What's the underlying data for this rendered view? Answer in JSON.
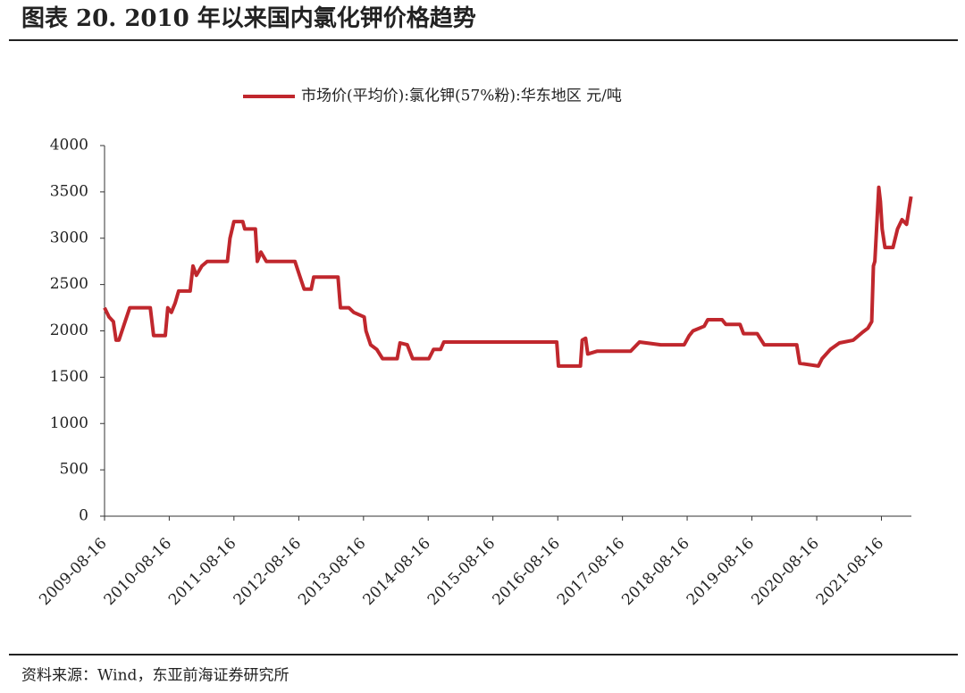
{
  "chart_data": {
    "type": "line",
    "title": "图表 20. 2010 年以来国内氯化钾价格趋势",
    "source": "资料来源：Wind，东亚前海证券研究所",
    "x": [
      "2009-08-16",
      "2009-09-10",
      "2009-10-05",
      "2009-10-20",
      "2009-11-05",
      "2009-12-10",
      "2010-01-05",
      "2010-05-01",
      "2010-05-20",
      "2010-07-25",
      "2010-08-08",
      "2010-08-28",
      "2010-09-18",
      "2010-10-08",
      "2010-12-12",
      "2010-12-28",
      "2011-01-16",
      "2011-02-16",
      "2011-03-18",
      "2011-07-10",
      "2011-07-25",
      "2011-08-16",
      "2011-10-05",
      "2011-10-16",
      "2011-12-15",
      "2011-12-26",
      "2012-01-15",
      "2012-02-15",
      "2012-07-25",
      "2012-08-20",
      "2012-09-15",
      "2012-10-25",
      "2012-11-08",
      "2013-03-25",
      "2013-04-08",
      "2013-05-25",
      "2013-06-22",
      "2013-08-20",
      "2013-08-30",
      "2013-09-25",
      "2013-10-30",
      "2013-12-01",
      "2014-02-22",
      "2014-03-10",
      "2014-04-20",
      "2014-05-20",
      "2014-08-20",
      "2014-09-15",
      "2014-10-25",
      "2014-11-12",
      "2016-08-10",
      "2016-08-20",
      "2016-12-22",
      "2017-01-01",
      "2017-01-20",
      "2017-02-01",
      "2017-03-25",
      "2017-10-01",
      "2017-11-20",
      "2018-03-20",
      "2018-07-30",
      "2018-08-28",
      "2018-09-18",
      "2018-11-20",
      "2018-12-10",
      "2019-03-01",
      "2019-03-22",
      "2019-06-10",
      "2019-06-30",
      "2019-09-15",
      "2019-10-25",
      "2020-04-25",
      "2020-05-12",
      "2020-08-25",
      "2020-09-15",
      "2020-11-01",
      "2020-12-22",
      "2021-03-10",
      "2021-04-28",
      "2021-06-01",
      "2021-06-22",
      "2021-07-02",
      "2021-07-10",
      "2021-08-01",
      "2021-08-10",
      "2021-08-20",
      "2021-09-05",
      "2021-10-20",
      "2021-11-15",
      "2021-12-10",
      "2022-01-05",
      "2022-01-30"
    ],
    "series": [
      {
        "name": "市场价(平均价):氯化钾(57%粉):华东地区 元/吨",
        "color": "#c0272d",
        "values": [
          2250,
          2150,
          2100,
          1900,
          1900,
          2100,
          2250,
          2250,
          1950,
          1950,
          2250,
          2200,
          2300,
          2430,
          2430,
          2700,
          2600,
          2700,
          2750,
          2750,
          3000,
          3180,
          3180,
          3100,
          3100,
          2750,
          2850,
          2750,
          2750,
          2600,
          2450,
          2450,
          2580,
          2580,
          2250,
          2250,
          2200,
          2150,
          2000,
          1850,
          1800,
          1700,
          1700,
          1870,
          1850,
          1700,
          1700,
          1800,
          1800,
          1880,
          1880,
          1620,
          1620,
          1900,
          1920,
          1750,
          1780,
          1780,
          1880,
          1850,
          1850,
          1950,
          2000,
          2050,
          2120,
          2120,
          2070,
          2070,
          1970,
          1970,
          1850,
          1850,
          1650,
          1620,
          1700,
          1800,
          1870,
          1900,
          1980,
          2030,
          2100,
          2700,
          2750,
          3550,
          3400,
          3100,
          2900,
          2900,
          3100,
          3200,
          3150,
          3450
        ]
      }
    ],
    "xlim": [
      "2009-08-16",
      "2022-02-01"
    ],
    "xticks": [
      "2009-08-16",
      "2010-08-16",
      "2011-08-16",
      "2012-08-16",
      "2013-08-16",
      "2014-08-16",
      "2015-08-16",
      "2016-08-16",
      "2017-08-16",
      "2018-08-16",
      "2019-08-16",
      "2020-08-16",
      "2021-08-16"
    ],
    "ylim": [
      0,
      4000
    ],
    "yticks": [
      0,
      500,
      1000,
      1500,
      2000,
      2500,
      3000,
      3500,
      4000
    ],
    "legend": "top"
  }
}
